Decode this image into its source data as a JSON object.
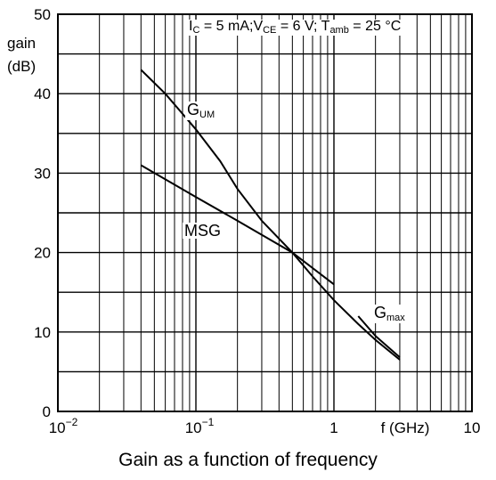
{
  "chart_data": {
    "type": "line",
    "title": "Gain as a function of frequency",
    "xlabel": "f (GHz)",
    "ylabel": [
      "gain",
      "(dB)"
    ],
    "x_scale": "log",
    "xlim": [
      0.01,
      10
    ],
    "ylim": [
      0,
      50
    ],
    "x_tick_labels": [
      "10",
      "−2",
      "10",
      "−1",
      "1",
      "10"
    ],
    "y_ticks": [
      0,
      10,
      20,
      30,
      40,
      50
    ],
    "y_tick_labels": [
      "0",
      "10",
      "20",
      "30",
      "40",
      "50"
    ],
    "grid": true,
    "conditions": {
      "ic": "I",
      "ic_sub": "C",
      "ic_val": " = 5 mA;",
      "vce": "V",
      "vce_sub": "CE",
      "vce_val": " = 6 V;",
      "tamb": "T",
      "tamb_sub": "amb",
      "tamb_val": " = 25 °C"
    },
    "series": [
      {
        "name": "GUM",
        "label_main": "G",
        "label_sub": "UM",
        "x": [
          0.04,
          0.06,
          0.1,
          0.15,
          0.2,
          0.3,
          0.5,
          0.7,
          1.0,
          1.5,
          2.0,
          3.0
        ],
        "y": [
          43,
          40,
          35.5,
          31.5,
          28,
          24,
          20,
          17,
          14,
          11,
          9,
          6.5
        ]
      },
      {
        "name": "MSG",
        "label_main": "MSG",
        "label_sub": "",
        "x": [
          0.04,
          0.1,
          0.2,
          0.5,
          1.0
        ],
        "y": [
          31,
          27,
          24,
          20,
          16
        ]
      },
      {
        "name": "Gmax",
        "label_main": "G",
        "label_sub": "max",
        "x": [
          1.5,
          2.0,
          3.0
        ],
        "y": [
          12,
          9.5,
          6.8
        ]
      }
    ]
  }
}
